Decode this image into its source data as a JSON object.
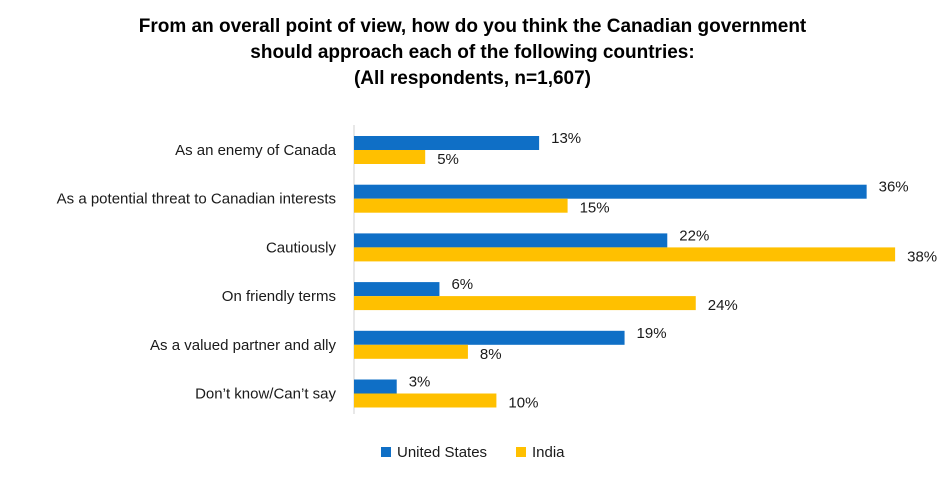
{
  "chart_data": {
    "type": "bar",
    "orientation": "horizontal",
    "title_lines": [
      "From an overall point of view, how do you think the Canadian government",
      "should approach each of the following countries:",
      "(All respondents,  n=1,607)"
    ],
    "categories": [
      "As an enemy of Canada",
      "As a potential threat to Canadian interests",
      "Cautiously",
      "On friendly terms",
      "As a valued partner and ally",
      "Don’t know/Can’t say"
    ],
    "series": [
      {
        "name": "United States",
        "color": "#0F6FC6",
        "values": [
          13,
          36,
          22,
          6,
          19,
          3
        ],
        "labels": [
          "13%",
          "36%",
          "22%",
          "6%",
          "19%",
          "3%"
        ]
      },
      {
        "name": "India",
        "color": "#FFC000",
        "values": [
          5,
          15,
          38,
          24,
          8,
          10
        ],
        "labels": [
          "5%",
          "15%",
          "38%",
          "24%",
          "8%",
          "10%"
        ]
      }
    ],
    "xlim": [
      0,
      38
    ],
    "xlabel": "",
    "ylabel": "",
    "grid": false,
    "legend_position": "bottom"
  }
}
